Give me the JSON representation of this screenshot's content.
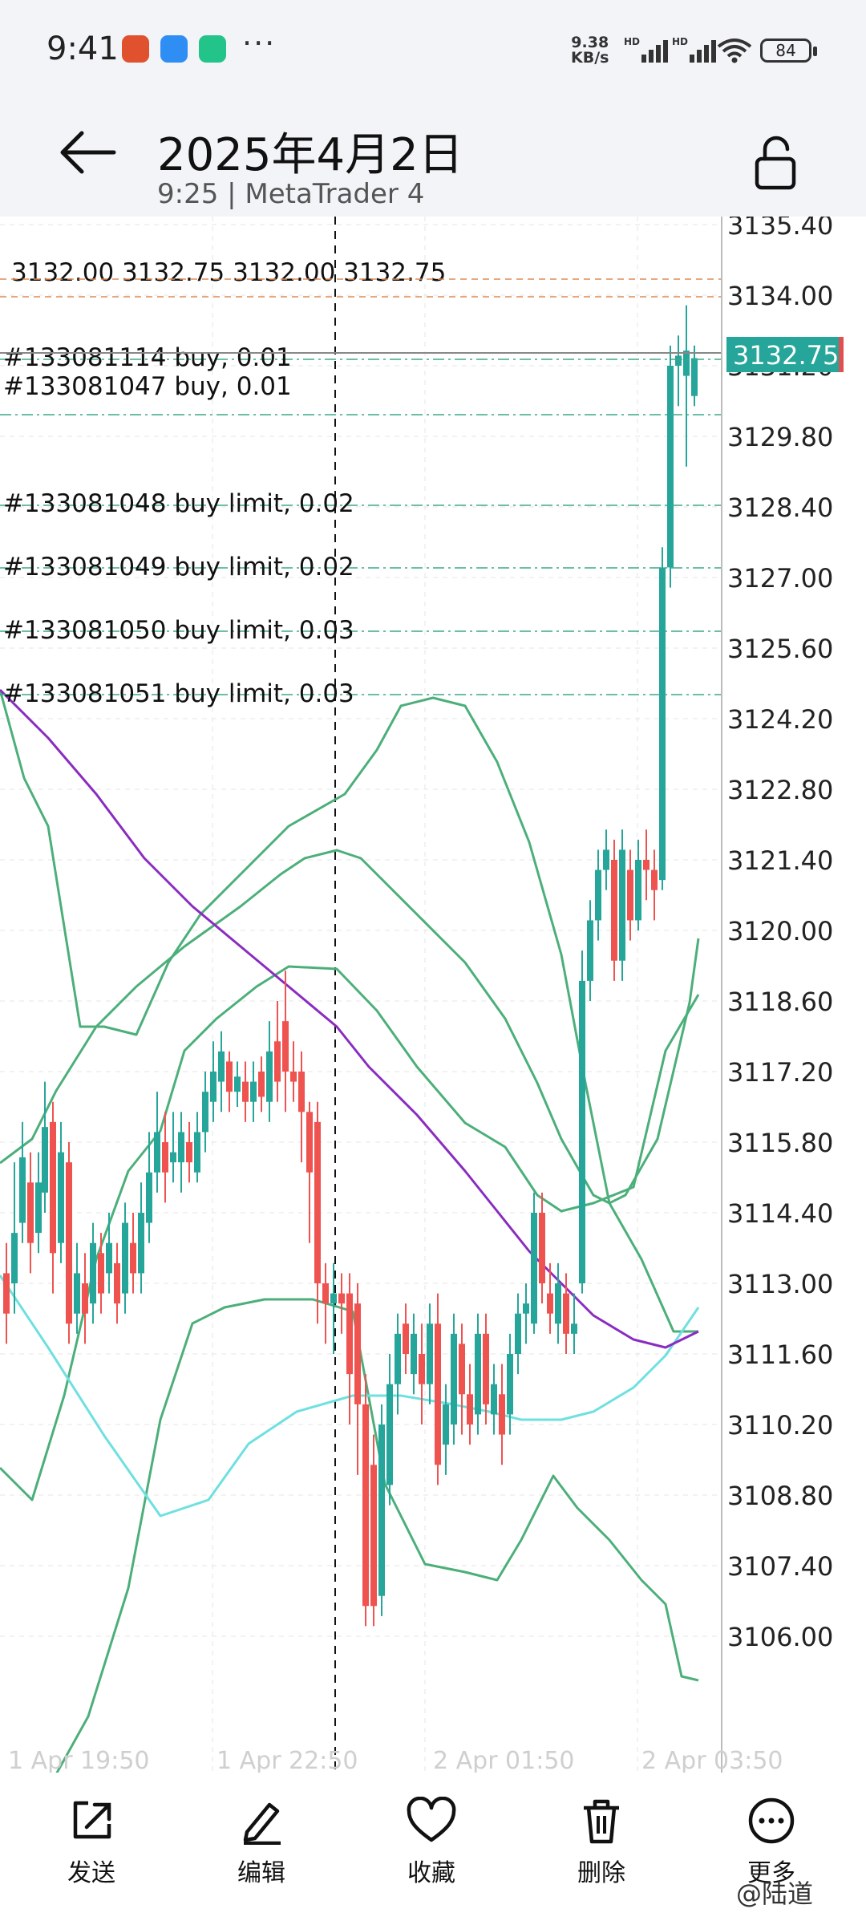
{
  "status": {
    "time": "9:41",
    "speed_value": "9.38",
    "speed_unit": "KB/s",
    "battery": "84"
  },
  "header": {
    "title": "2025年4月2日",
    "subtitle": "9:25 | MetaTrader 4"
  },
  "chart": {
    "ohlc_label": "3132.00 3132.75 3132.00 3132.75",
    "current_price": "3132.75",
    "orders": [
      {
        "label": "#133081114 buy, 0.01"
      },
      {
        "label": "#133081047 buy, 0.01"
      },
      {
        "label": "#133081048 buy limit, 0.02"
      },
      {
        "label": "#133081049 buy limit, 0.02"
      },
      {
        "label": "#133081050 buy limit, 0.03"
      },
      {
        "label": "#133081051 buy limit, 0.03"
      }
    ],
    "price_ticks": [
      "3135.40",
      "3134.00",
      "3131.20",
      "3129.80",
      "3128.40",
      "3127.00",
      "3125.60",
      "3124.20",
      "3122.80",
      "3121.40",
      "3120.00",
      "3118.60",
      "3117.20",
      "3115.80",
      "3114.40",
      "3113.00",
      "3111.60",
      "3110.20",
      "3108.80",
      "3107.40",
      "3106.00"
    ],
    "time_ticks": [
      "1 Apr 19:50",
      "1 Apr 22:50",
      "2 Apr 01:50",
      "2 Apr 03:50"
    ],
    "colors": {
      "up": "#26a69a",
      "down": "#ef5350",
      "bollinger": "#4caf7a",
      "ma_fast": "#6fe0e0",
      "ma_slow": "#8a2cc0"
    }
  },
  "actions": [
    {
      "label": "发送",
      "icon": "share-icon"
    },
    {
      "label": "编辑",
      "icon": "pen-icon"
    },
    {
      "label": "收藏",
      "icon": "heart-icon"
    },
    {
      "label": "删除",
      "icon": "trash-icon"
    },
    {
      "label": "更多",
      "icon": "more-icon"
    }
  ],
  "watermark": "@陆道"
}
